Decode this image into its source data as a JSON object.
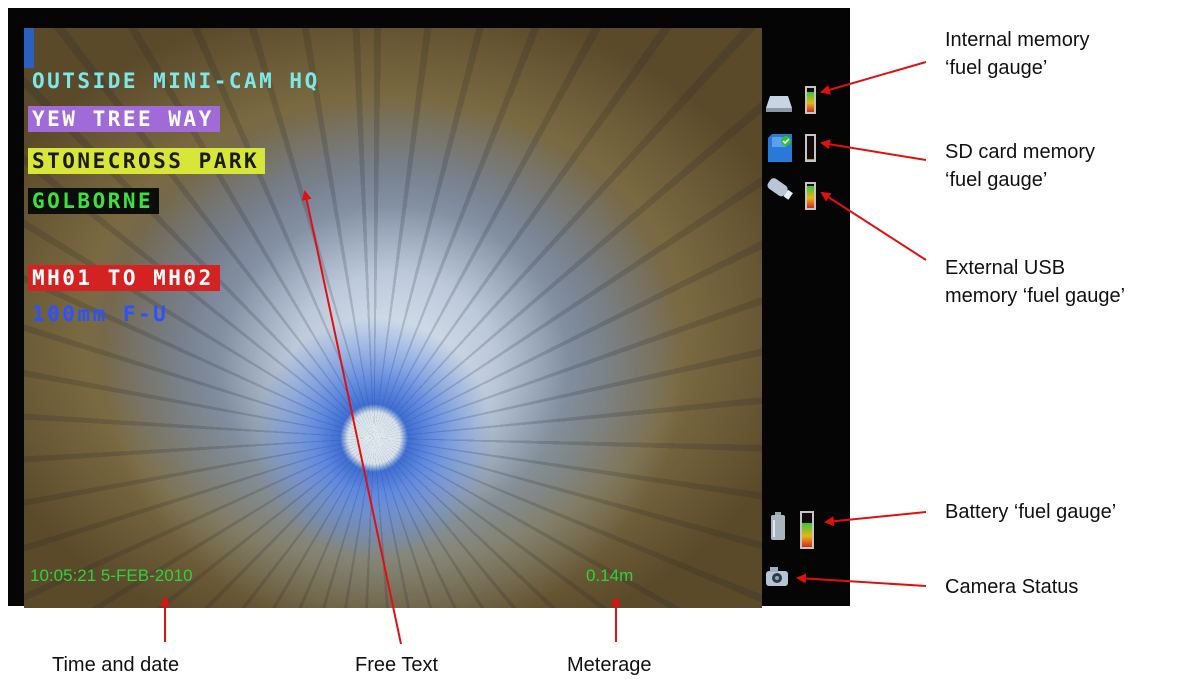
{
  "screen": {
    "overlay_lines": [
      {
        "text": "OUTSIDE MINI-CAM HQ",
        "fg": "#7ee8e8",
        "bg": "none"
      },
      {
        "text": "YEW TREE WAY",
        "fg": "#ffffff",
        "bg": "#a06ad8"
      },
      {
        "text": "STONECROSS PARK",
        "fg": "#1a1a1a",
        "bg": "#d8e63a"
      },
      {
        "text": "GOLBORNE",
        "fg": "#3be23b",
        "bg": "#0c0c0c"
      },
      {
        "text": "MH01 TO MH02",
        "fg": "#ffffff",
        "bg": "#d42222"
      },
      {
        "text": "100mm F-U",
        "fg": "#2c52ff",
        "bg": "none"
      }
    ],
    "timestamp": "10:05:21 5-FEB-2010",
    "meterage": "0.14m",
    "icons": [
      "internal-memory-icon",
      "sd-card-icon",
      "usb-stick-icon",
      "battery-icon",
      "camera-icon"
    ],
    "gauge_levels": {
      "internal_memory": 0.85,
      "sd_card": 0.05,
      "usb": 0.9,
      "battery": 0.7
    }
  },
  "callouts": {
    "internal_memory": [
      "Internal memory",
      "‘fuel gauge’"
    ],
    "sd_card": [
      "SD card memory",
      "‘fuel gauge’"
    ],
    "usb": [
      "External USB",
      "memory ‘fuel gauge’"
    ],
    "battery": "Battery ‘fuel gauge’",
    "camera_status": "Camera Status",
    "time_date": "Time and date",
    "free_text": "Free Text",
    "meterage": "Meterage"
  },
  "colors": {
    "arrow": "#e01010",
    "status_text": "#2fd23a"
  }
}
